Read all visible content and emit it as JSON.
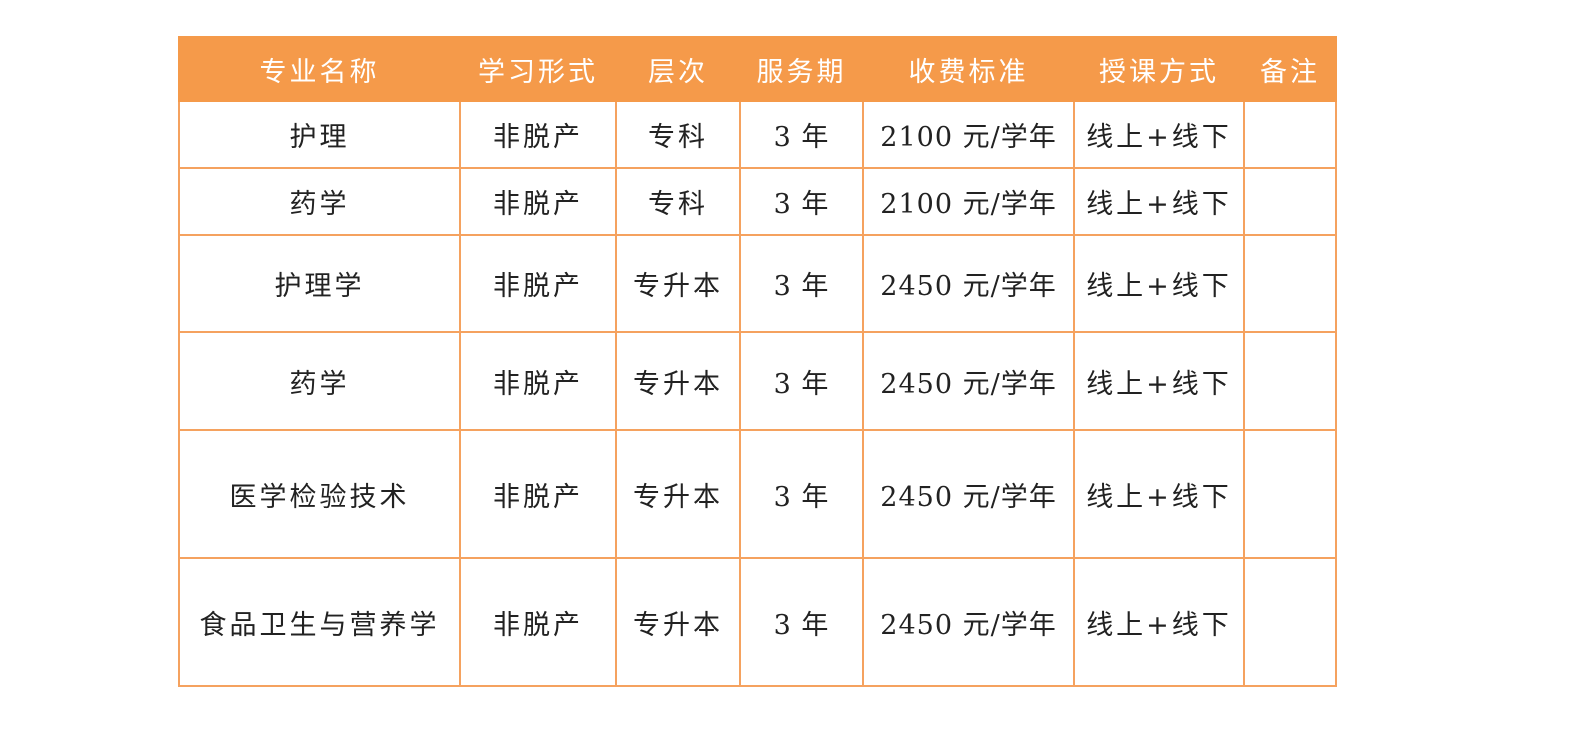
{
  "colors": {
    "header_bg": "#F59A4A",
    "border": "#F5A25F"
  },
  "headers": [
    "专业名称",
    "学习形式",
    "层次",
    "服务期",
    "收费标准",
    "授课方式",
    "备注"
  ],
  "rows": [
    [
      "护理",
      "非脱产",
      "专科",
      "3 年",
      "2100 元/学年",
      "线上+线下",
      ""
    ],
    [
      "药学",
      "非脱产",
      "专科",
      "3 年",
      "2100 元/学年",
      "线上+线下",
      ""
    ],
    [
      "护理学",
      "非脱产",
      "专升本",
      "3 年",
      "2450 元/学年",
      "线上+线下",
      ""
    ],
    [
      "药学",
      "非脱产",
      "专升本",
      "3 年",
      "2450 元/学年",
      "线上+线下",
      ""
    ],
    [
      "医学检验技术",
      "非脱产",
      "专升本",
      "3 年",
      "2450 元/学年",
      "线上+线下",
      ""
    ],
    [
      "食品卫生与营养学",
      "非脱产",
      "专升本",
      "3 年",
      "2450 元/学年",
      "线上+线下",
      ""
    ]
  ]
}
